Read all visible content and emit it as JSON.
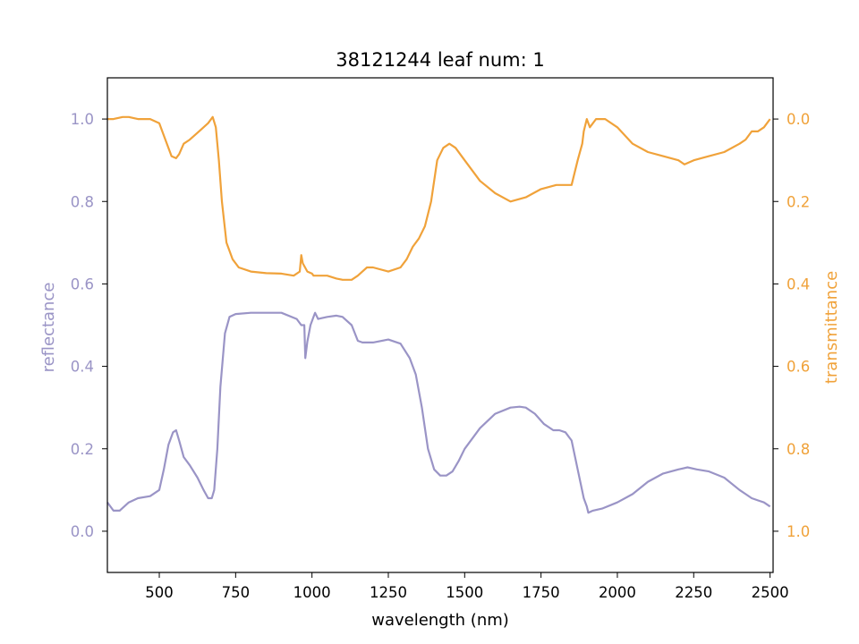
{
  "chart_data": {
    "type": "line",
    "title": "38121244 leaf num: 1",
    "xlabel": "wavelength (nm)",
    "xlim": [
      330,
      2510
    ],
    "x_ticks": [
      "500",
      "750",
      "1000",
      "1250",
      "1500",
      "1750",
      "2000",
      "2250",
      "2500"
    ],
    "grid": false,
    "legend": "none",
    "y_axes": {
      "left": {
        "label": "reflectance",
        "ylim": [
          -0.1,
          1.1
        ],
        "ticks": [
          "0.0",
          "0.2",
          "0.4",
          "0.6",
          "0.8",
          "1.0"
        ],
        "color": "#9a94c6"
      },
      "right": {
        "label": "transmittance",
        "ylim": [
          1.1,
          -0.1
        ],
        "inverted": true,
        "ticks": [
          "0.0",
          "0.2",
          "0.4",
          "0.6",
          "0.8",
          "1.0"
        ],
        "color": "#f0a23a"
      }
    },
    "series": [
      {
        "axis": "left",
        "color": "#9a94c6",
        "x": [
          330,
          350,
          370,
          400,
          430,
          470,
          500,
          515,
          530,
          545,
          555,
          565,
          580,
          600,
          625,
          645,
          660,
          672,
          680,
          690,
          700,
          715,
          730,
          750,
          800,
          900,
          950,
          965,
          975,
          978,
          985,
          995,
          1005,
          1010,
          1020,
          1050,
          1080,
          1100,
          1130,
          1150,
          1165,
          1200,
          1250,
          1290,
          1320,
          1340,
          1360,
          1380,
          1400,
          1420,
          1440,
          1460,
          1480,
          1500,
          1550,
          1600,
          1650,
          1680,
          1700,
          1730,
          1760,
          1790,
          1810,
          1830,
          1850,
          1870,
          1890,
          1900,
          1905,
          1920,
          1950,
          2000,
          2050,
          2100,
          2150,
          2200,
          2230,
          2260,
          2300,
          2350,
          2400,
          2420,
          2440,
          2460,
          2480,
          2500
        ],
        "y": [
          0.07,
          0.05,
          0.05,
          0.07,
          0.08,
          0.085,
          0.1,
          0.15,
          0.21,
          0.24,
          0.245,
          0.22,
          0.18,
          0.16,
          0.13,
          0.1,
          0.08,
          0.08,
          0.1,
          0.2,
          0.35,
          0.48,
          0.52,
          0.527,
          0.53,
          0.53,
          0.515,
          0.5,
          0.5,
          0.42,
          0.46,
          0.5,
          0.52,
          0.53,
          0.515,
          0.52,
          0.523,
          0.52,
          0.5,
          0.462,
          0.458,
          0.458,
          0.465,
          0.455,
          0.42,
          0.38,
          0.3,
          0.2,
          0.15,
          0.135,
          0.135,
          0.145,
          0.17,
          0.2,
          0.25,
          0.285,
          0.3,
          0.302,
          0.3,
          0.285,
          0.26,
          0.245,
          0.245,
          0.24,
          0.22,
          0.15,
          0.08,
          0.06,
          0.045,
          0.05,
          0.055,
          0.07,
          0.09,
          0.12,
          0.14,
          0.15,
          0.155,
          0.15,
          0.145,
          0.13,
          0.1,
          0.09,
          0.08,
          0.075,
          0.07,
          0.06
        ]
      },
      {
        "axis": "right",
        "color": "#f0a23a",
        "x": [
          330,
          350,
          380,
          400,
          430,
          470,
          500,
          520,
          540,
          555,
          565,
          580,
          600,
          630,
          660,
          675,
          685,
          695,
          705,
          720,
          740,
          760,
          800,
          850,
          900,
          940,
          960,
          965,
          970,
          985,
          1000,
          1005,
          1050,
          1080,
          1100,
          1130,
          1150,
          1165,
          1180,
          1200,
          1250,
          1290,
          1310,
          1330,
          1350,
          1370,
          1390,
          1410,
          1430,
          1450,
          1470,
          1500,
          1550,
          1600,
          1650,
          1700,
          1750,
          1800,
          1820,
          1850,
          1870,
          1885,
          1890,
          1900,
          1910,
          1930,
          1960,
          2000,
          2050,
          2100,
          2150,
          2200,
          2220,
          2250,
          2300,
          2350,
          2400,
          2420,
          2440,
          2460,
          2480,
          2500
        ],
        "y": [
          0.0,
          0.0,
          -0.005,
          -0.005,
          0.0,
          0.0,
          0.01,
          0.05,
          0.09,
          0.095,
          0.085,
          0.06,
          0.05,
          0.03,
          0.01,
          -0.005,
          0.02,
          0.1,
          0.2,
          0.3,
          0.34,
          0.36,
          0.37,
          0.374,
          0.375,
          0.38,
          0.37,
          0.33,
          0.35,
          0.37,
          0.375,
          0.38,
          0.38,
          0.387,
          0.39,
          0.39,
          0.38,
          0.37,
          0.36,
          0.36,
          0.37,
          0.36,
          0.34,
          0.31,
          0.29,
          0.26,
          0.2,
          0.1,
          0.07,
          0.06,
          0.07,
          0.1,
          0.15,
          0.18,
          0.2,
          0.19,
          0.17,
          0.16,
          0.16,
          0.16,
          0.1,
          0.06,
          0.03,
          0.0,
          0.02,
          0.0,
          0.0,
          0.02,
          0.06,
          0.08,
          0.09,
          0.1,
          0.11,
          0.1,
          0.09,
          0.08,
          0.06,
          0.05,
          0.03,
          0.03,
          0.02,
          0.0
        ]
      }
    ]
  }
}
